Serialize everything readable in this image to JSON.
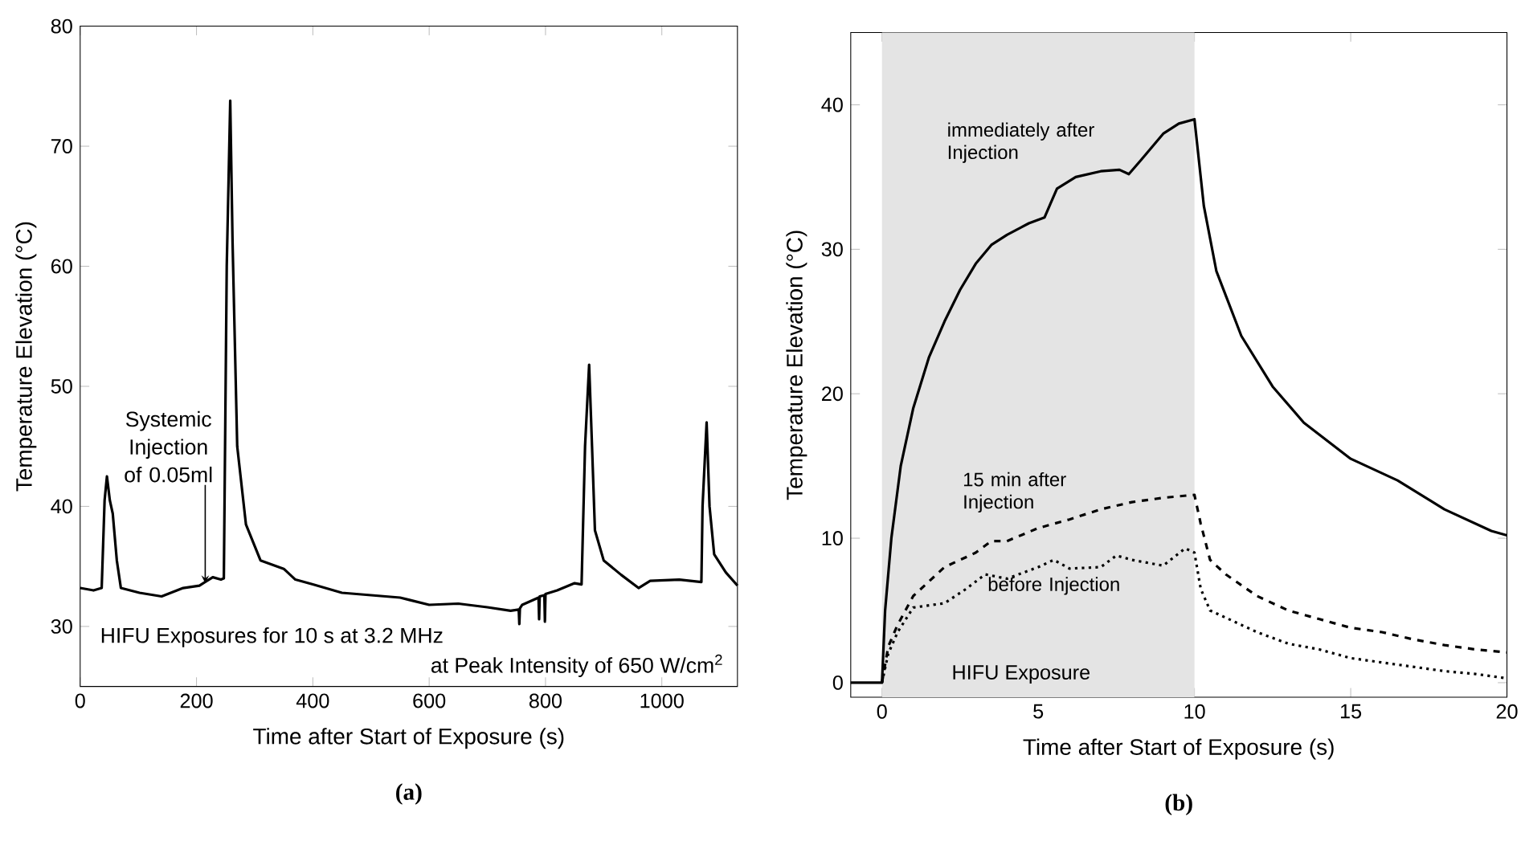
{
  "chart_data": [
    {
      "type": "line",
      "xlabel": "Time after Start of Exposure (s)",
      "ylabel": "Temperature Elevation (°C)",
      "xlim": [
        0,
        1130
      ],
      "ylim": [
        25,
        80
      ],
      "xticks": [
        0,
        200,
        400,
        600,
        800,
        1000
      ],
      "yticks": [
        30,
        40,
        50,
        60,
        70,
        80
      ],
      "series": [
        {
          "color": "#000000",
          "line_style": "solid",
          "x": [
            0,
            23,
            37,
            42,
            46,
            51,
            56,
            63,
            70,
            102,
            140,
            177,
            205,
            228,
            242,
            247,
            252,
            258,
            262,
            270,
            285,
            310,
            350,
            370,
            400,
            450,
            500,
            550,
            600,
            650,
            700,
            740,
            754,
            755,
            756,
            760,
            788,
            789,
            790,
            798,
            799,
            800,
            820,
            850,
            862,
            868,
            875,
            880,
            885,
            900,
            930,
            960,
            980,
            1030,
            1068,
            1070,
            1077,
            1082,
            1090,
            1110,
            1130
          ],
          "values": [
            33.2,
            33.0,
            33.2,
            40.5,
            42.5,
            40.5,
            39.4,
            35.5,
            33.2,
            32.8,
            32.5,
            33.2,
            33.4,
            34.1,
            33.9,
            34.0,
            60,
            73.8,
            62,
            45,
            38.5,
            35.5,
            34.8,
            33.9,
            33.5,
            32.8,
            32.6,
            32.4,
            31.8,
            31.9,
            31.6,
            31.3,
            31.4,
            30.2,
            31.5,
            31.8,
            32.4,
            30.6,
            32.5,
            32.6,
            30.4,
            32.7,
            33.0,
            33.6,
            33.5,
            45,
            51.8,
            45,
            38,
            35.5,
            34.3,
            33.2,
            33.8,
            33.9,
            33.7,
            40,
            47,
            40,
            36,
            34.5,
            33.4
          ]
        }
      ],
      "annotations": [
        {
          "text": "Systemic Injection of 0.05ml",
          "x": 215,
          "y": 33.6
        },
        "HIFU Exposures for 10 s at 3.2 MHz",
        "at Peak Intensity of 650 W/cm$^{2}$",
        "(a)"
      ]
    },
    {
      "type": "line",
      "xlabel": "Time after Start of Exposure (s)",
      "ylabel": "Temperature Elevation (°C)",
      "xlim": [
        -1,
        20
      ],
      "ylim": [
        -1,
        45
      ],
      "xticks": [
        0,
        5,
        10,
        15,
        20
      ],
      "yticks": [
        0,
        10,
        20,
        30,
        40
      ],
      "series": [
        {
          "name": "immediately after Injection",
          "color": "#000000",
          "line_style": "solid",
          "x": [
            -1,
            0,
            0.1,
            0.3,
            0.6,
            1,
            1.5,
            2,
            2.5,
            3,
            3.5,
            4,
            4.7,
            5.2,
            5.6,
            6.2,
            7,
            7.6,
            7.9,
            8.3,
            9,
            9.5,
            10,
            10.3,
            10.7,
            11.5,
            12.5,
            13.5,
            15,
            16.5,
            18,
            19.5,
            20
          ],
          "values": [
            0,
            0,
            5,
            10,
            15,
            19,
            22.5,
            25,
            27.2,
            29,
            30.3,
            31,
            31.8,
            32.2,
            34.2,
            35,
            35.4,
            35.5,
            35.2,
            36.2,
            38,
            38.7,
            39,
            33,
            28.5,
            24,
            20.5,
            18,
            15.5,
            14,
            12,
            10.5,
            10.2
          ]
        },
        {
          "name": "15 min after Injection",
          "color": "#000000",
          "line_style": "dashed",
          "x": [
            0,
            0.2,
            0.5,
            1,
            2,
            3,
            3.5,
            4,
            5,
            6,
            7,
            8,
            9,
            10,
            10.2,
            10.5,
            11,
            12,
            13,
            14,
            15,
            16,
            17,
            18,
            19,
            20
          ],
          "values": [
            0,
            2.5,
            4,
            6,
            8,
            9,
            9.8,
            9.8,
            10.7,
            11.3,
            12,
            12.5,
            12.8,
            13,
            11,
            8.5,
            7.5,
            6,
            5,
            4.4,
            3.8,
            3.5,
            3,
            2.6,
            2.3,
            2.1
          ]
        },
        {
          "name": "before Injection",
          "color": "#000000",
          "line_style": "dotted",
          "x": [
            0,
            0.2,
            0.5,
            1,
            2,
            2.7,
            3.3,
            4,
            5,
            5.5,
            6,
            7,
            7.5,
            8,
            9,
            9.7,
            10,
            10.2,
            10.5,
            11,
            12,
            13,
            14,
            15,
            16,
            17,
            18,
            19,
            20
          ],
          "values": [
            0,
            2,
            3.5,
            5.2,
            5.5,
            6.5,
            7.5,
            7.2,
            8,
            8.5,
            7.9,
            8,
            8.8,
            8.5,
            8.1,
            9.3,
            9,
            6.5,
            5,
            4.5,
            3.5,
            2.7,
            2.3,
            1.7,
            1.4,
            1.1,
            0.8,
            0.6,
            0.3
          ]
        }
      ],
      "bands": [
        {
          "axis": "x",
          "from": 0,
          "to": 10,
          "label": "HIFU Exposure",
          "color": "#e4e4e4"
        }
      ],
      "annotations": [
        "(b)"
      ]
    }
  ]
}
